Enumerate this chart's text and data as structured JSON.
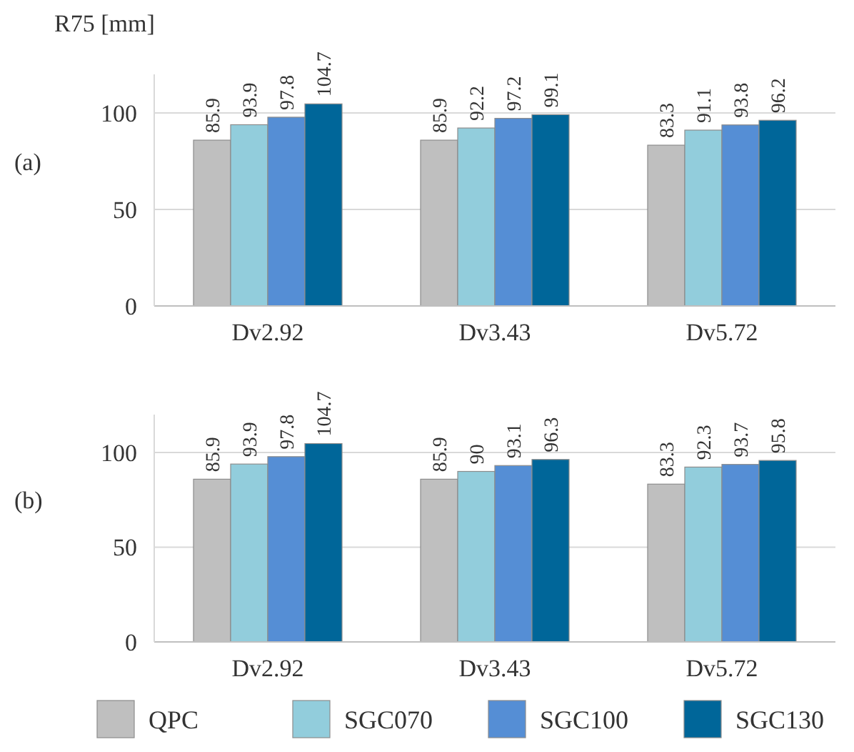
{
  "chart_data": [
    {
      "type": "bar",
      "ylabel": "R75 [mm]",
      "annotations": [
        "(a)"
      ],
      "categories": [
        "Dv2.92",
        "Dv3.43",
        "Dv5.72"
      ],
      "ylim": [
        0,
        120
      ],
      "yticks": [
        0,
        50,
        100
      ],
      "grid": "y",
      "data_labels": true,
      "series": [
        {
          "color": "#bfbfbf",
          "values": [
            85.9,
            85.9,
            83.3
          ]
        },
        {
          "color": "#92cddc",
          "values": [
            93.9,
            92.2,
            91.1
          ]
        },
        {
          "color": "#558ed5",
          "values": [
            97.8,
            97.2,
            93.8
          ]
        },
        {
          "color": "#006699",
          "values": [
            104.7,
            99.1,
            96.2
          ]
        }
      ]
    },
    {
      "type": "bar",
      "annotations": [
        "(b)"
      ],
      "categories": [
        "Dv2.92",
        "Dv3.43",
        "Dv5.72"
      ],
      "ylim": [
        0,
        120
      ],
      "yticks": [
        0,
        50,
        100
      ],
      "grid": "y",
      "data_labels": true,
      "legend": "bottom",
      "series": [
        {
          "name": "QPC",
          "color": "#bfbfbf",
          "values": [
            85.9,
            85.9,
            83.3
          ]
        },
        {
          "name": "SGC070",
          "color": "#92cddc",
          "values": [
            93.9,
            90,
            92.3
          ]
        },
        {
          "name": "SGC100",
          "color": "#558ed5",
          "values": [
            97.8,
            93.1,
            93.7
          ]
        },
        {
          "name": "SGC130",
          "color": "#006699",
          "values": [
            104.7,
            96.3,
            95.8
          ]
        }
      ]
    }
  ]
}
